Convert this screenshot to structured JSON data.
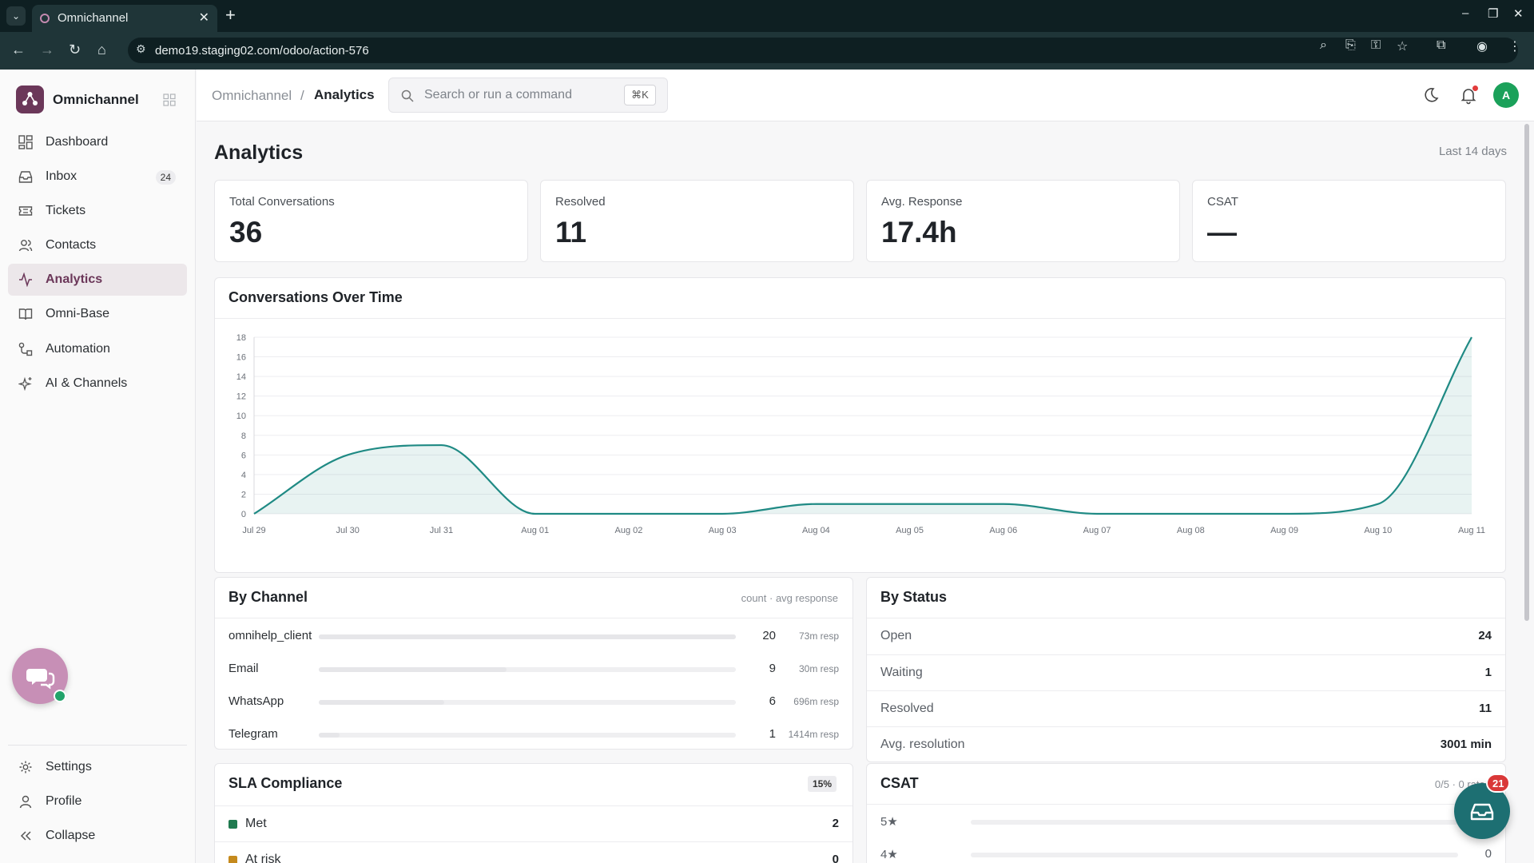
{
  "browser": {
    "tab_title": "Omnichannel",
    "url": "demo19.staging02.com/odoo/action-576"
  },
  "sidebar": {
    "brand": "Omnichannel",
    "items": [
      {
        "label": "Dashboard",
        "icon": "dashboard-icon"
      },
      {
        "label": "Inbox",
        "icon": "inbox-icon",
        "badge": "24"
      },
      {
        "label": "Tickets",
        "icon": "tickets-icon"
      },
      {
        "label": "Contacts",
        "icon": "contacts-icon"
      },
      {
        "label": "Analytics",
        "icon": "analytics-icon",
        "active": true
      },
      {
        "label": "Omni-Base",
        "icon": "book-icon"
      },
      {
        "label": "Automation",
        "icon": "automation-icon"
      },
      {
        "label": "AI & Channels",
        "icon": "sparkle-icon"
      }
    ],
    "footer": [
      {
        "label": "Settings",
        "icon": "gear-icon"
      },
      {
        "label": "Profile",
        "icon": "user-icon"
      },
      {
        "label": "Collapse",
        "icon": "collapse-icon"
      }
    ]
  },
  "header": {
    "breadcrumb_parent": "Omnichannel",
    "breadcrumb_sep": "/",
    "breadcrumb_current": "Analytics",
    "search_placeholder": "Search or run a command",
    "search_shortcut": "⌘K",
    "avatar_initial": "A"
  },
  "page": {
    "title": "Analytics",
    "range": "Last 14 days"
  },
  "kpis": [
    {
      "label": "Total Conversations",
      "value": "36"
    },
    {
      "label": "Resolved",
      "value": "11"
    },
    {
      "label": "Avg. Response",
      "value": "17.4h"
    },
    {
      "label": "CSAT",
      "value": "—"
    }
  ],
  "chart_data": {
    "type": "area",
    "title": "Conversations Over Time",
    "x": [
      "Jul 29",
      "Jul 30",
      "Jul 31",
      "Aug 01",
      "Aug 02",
      "Aug 03",
      "Aug 04",
      "Aug 05",
      "Aug 06",
      "Aug 07",
      "Aug 08",
      "Aug 09",
      "Aug 10",
      "Aug 11"
    ],
    "values": [
      0,
      6,
      7,
      0,
      0,
      0,
      1,
      1,
      1,
      0,
      0,
      0,
      1,
      18
    ],
    "yticks": [
      "0",
      "2",
      "4",
      "6",
      "8",
      "10",
      "12",
      "14",
      "16",
      "18"
    ],
    "ylim": [
      0,
      18
    ],
    "grid": true,
    "color": "#1f8a84"
  },
  "by_channel": {
    "title": "By Channel",
    "hint": "count · avg response",
    "rows": [
      {
        "name": "omnihelp_client",
        "count": "20",
        "resp": "73m resp"
      },
      {
        "name": "Email",
        "count": "9",
        "resp": "30m resp"
      },
      {
        "name": "WhatsApp",
        "count": "6",
        "resp": "696m resp"
      },
      {
        "name": "Telegram",
        "count": "1",
        "resp": "1414m resp"
      }
    ]
  },
  "by_status": {
    "title": "By Status",
    "rows": [
      {
        "label": "Open",
        "value": "24"
      },
      {
        "label": "Waiting",
        "value": "1"
      },
      {
        "label": "Resolved",
        "value": "11"
      },
      {
        "label": "Avg. resolution",
        "value": "3001 min"
      }
    ]
  },
  "sla": {
    "title": "SLA Compliance",
    "badge": "15%",
    "rows": [
      {
        "label": "Met",
        "value": "2",
        "color": "#1f7a4f"
      },
      {
        "label": "At risk",
        "value": "0",
        "color": "#c58a1d"
      }
    ]
  },
  "csat": {
    "title": "CSAT",
    "hint": "0/5 · 0 rated",
    "rows": [
      {
        "label": "5★",
        "value": ""
      },
      {
        "label": "4★",
        "value": "0"
      }
    ]
  },
  "fab": {
    "badge": "21"
  }
}
